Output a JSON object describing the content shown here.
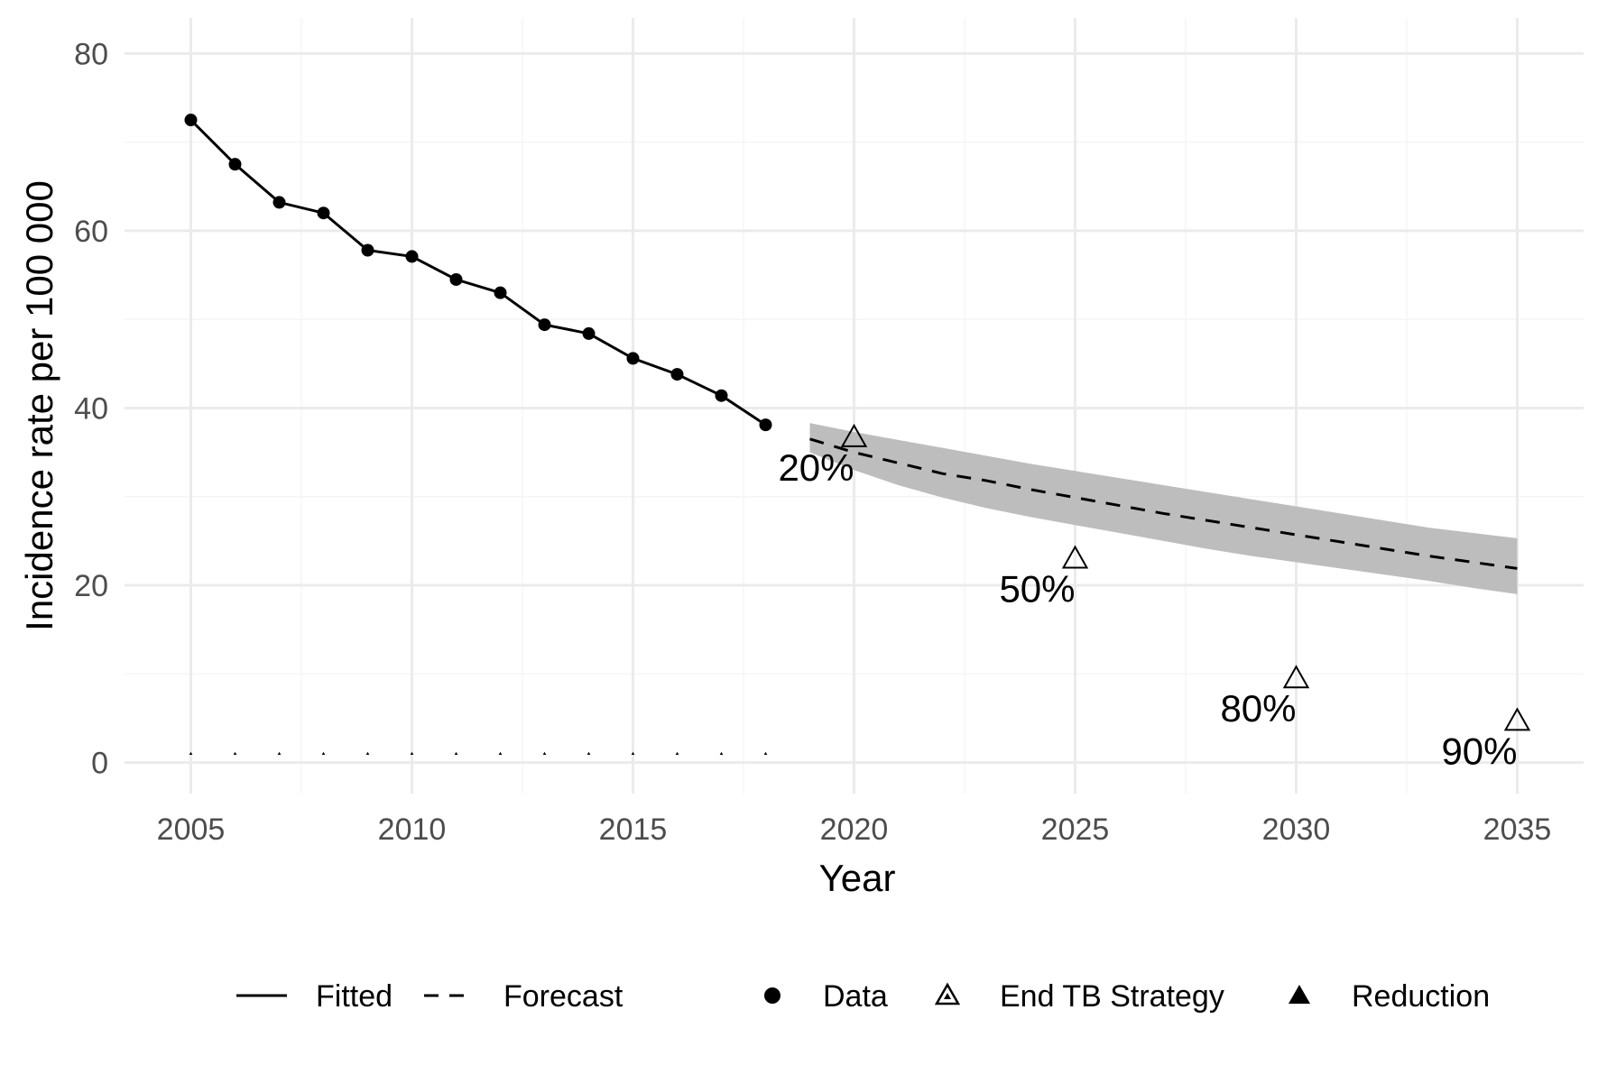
{
  "chart_data": {
    "type": "line",
    "xlabel": "Year",
    "ylabel": "Incidence rate per 100 000",
    "xlim": [
      2003.5,
      2036.5
    ],
    "ylim": [
      -3.5,
      84
    ],
    "x_ticks": [
      2005,
      2010,
      2015,
      2020,
      2025,
      2030,
      2035
    ],
    "x_tick_labels": [
      "2005",
      "2010",
      "2015",
      "2020",
      "2025",
      "2030",
      "2035"
    ],
    "y_ticks": [
      0,
      20,
      40,
      60,
      80
    ],
    "y_tick_labels": [
      "0",
      "20",
      "40",
      "60",
      "80"
    ],
    "grid": true,
    "legend_position": "bottom",
    "series": [
      {
        "name": "Data",
        "kind": "points",
        "x": [
          2005,
          2006,
          2007,
          2008,
          2009,
          2010,
          2011,
          2012,
          2013,
          2014,
          2015,
          2016,
          2017,
          2018
        ],
        "y": [
          72.5,
          67.5,
          63.2,
          62.0,
          57.8,
          57.1,
          54.5,
          53.0,
          49.4,
          48.4,
          45.6,
          43.8,
          41.4,
          38.1
        ]
      },
      {
        "name": "Fitted",
        "kind": "solid-line",
        "x": [
          2005,
          2006,
          2007,
          2008,
          2009,
          2010,
          2011,
          2012,
          2013,
          2014,
          2015,
          2016,
          2017,
          2018
        ],
        "y": [
          72.5,
          67.5,
          63.2,
          62.0,
          57.8,
          57.1,
          54.5,
          53.0,
          49.4,
          48.4,
          45.6,
          43.8,
          41.4,
          38.1
        ]
      },
      {
        "name": "Forecast",
        "kind": "dashed-line",
        "x": [
          2019,
          2020,
          2021,
          2022,
          2023,
          2024,
          2025,
          2026,
          2027,
          2028,
          2029,
          2030,
          2031,
          2032,
          2033,
          2034,
          2035
        ],
        "y": [
          36.5,
          35.0,
          33.8,
          32.6,
          31.8,
          30.8,
          29.9,
          29.0,
          28.1,
          27.3,
          26.5,
          25.7,
          24.9,
          24.1,
          23.3,
          22.6,
          21.9
        ],
        "band_lower": [
          35.0,
          33.0,
          31.3,
          29.9,
          28.7,
          27.7,
          26.8,
          25.9,
          25.0,
          24.1,
          23.3,
          22.6,
          21.9,
          21.2,
          20.5,
          19.7,
          19.0
        ],
        "band_upper": [
          38.3,
          37.3,
          36.4,
          35.5,
          34.6,
          33.7,
          32.9,
          32.1,
          31.3,
          30.5,
          29.7,
          28.9,
          28.1,
          27.3,
          26.5,
          25.9,
          25.3
        ]
      },
      {
        "name": "End TB Strategy",
        "kind": "open-triangles",
        "x": [
          2020,
          2025,
          2030,
          2035
        ],
        "y": [
          36.7,
          23.0,
          9.5,
          4.7
        ],
        "labels": [
          "20%",
          "50%",
          "80%",
          "90%"
        ]
      },
      {
        "name": "Reduction",
        "kind": "filled-triangles",
        "x": [
          2005,
          2006,
          2007,
          2008,
          2009,
          2010,
          2011,
          2012,
          2013,
          2014,
          2015,
          2016,
          2017,
          2018
        ],
        "y": [
          1,
          1,
          1,
          1,
          1,
          1,
          1,
          1,
          1,
          1,
          1,
          1,
          1,
          1
        ]
      }
    ],
    "legend": {
      "linetype": [
        "Fitted",
        "Forecast"
      ],
      "shape": [
        "Data",
        "End TB Strategy",
        "Reduction"
      ]
    },
    "colors": {
      "line": "#000000",
      "band": "#bdbdbd",
      "grid_major": "#ebebeb",
      "grid_minor": "#f5f5f5",
      "tick_text": "#4d4d4d"
    }
  }
}
